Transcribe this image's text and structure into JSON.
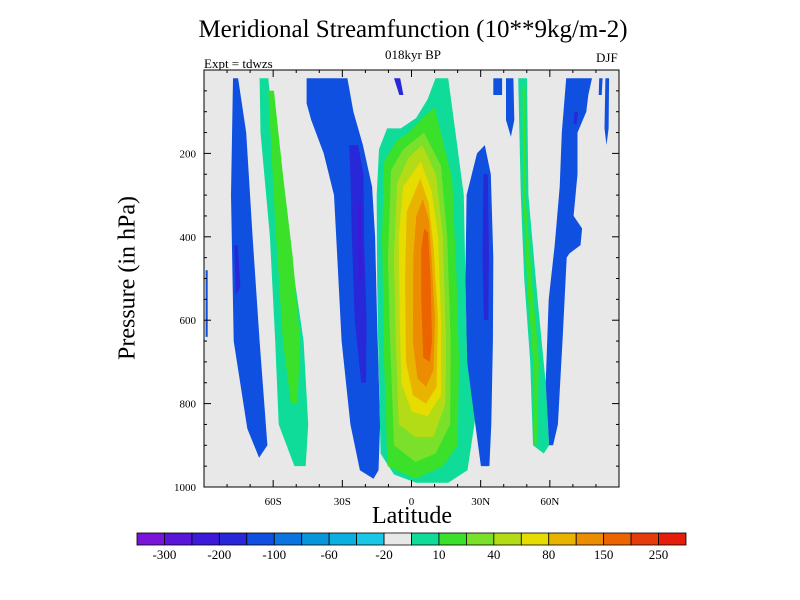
{
  "chart_data": {
    "type": "heatmap",
    "title": "Meridional Streamfunction (10**9kg/m-2)",
    "subtitle": "018kyr BP",
    "left_annotation": "Expt = tdwzs",
    "right_annotation": "DJF",
    "xlabel": "Latitude",
    "ylabel": "Pressure (in hPa)",
    "xlim": [
      -90,
      90
    ],
    "ylim": [
      1000,
      0
    ],
    "x_ticks": [
      {
        "value": -60,
        "label": "60S"
      },
      {
        "value": -30,
        "label": "30S"
      },
      {
        "value": 0,
        "label": "0"
      },
      {
        "value": 30,
        "label": "30N"
      },
      {
        "value": 60,
        "label": "60N"
      }
    ],
    "y_ticks": [
      {
        "value": 200,
        "label": "200"
      },
      {
        "value": 400,
        "label": "400"
      },
      {
        "value": 600,
        "label": "600"
      },
      {
        "value": 800,
        "label": "800"
      },
      {
        "value": 1000,
        "label": "1000"
      }
    ],
    "background_color": "#e8e8e8",
    "colorbar": {
      "colors": [
        "#7a14d8",
        "#5a16d8",
        "#3c1ad8",
        "#2828d8",
        "#1050e0",
        "#0a74e0",
        "#0896da",
        "#0ab0e0",
        "#18c8e6",
        "#e8e8e8",
        "#10dc9a",
        "#3ae02a",
        "#7ae02a",
        "#b4dc16",
        "#e6dc00",
        "#e8b400",
        "#ec8c00",
        "#ec6400",
        "#e43c0a",
        "#e41e0a"
      ],
      "labels": [
        "-300",
        "-200",
        "-100",
        "-60",
        "-20",
        "10",
        "40",
        "80",
        "150",
        "250"
      ]
    },
    "regions": [
      {
        "level": -5,
        "polygon": [
          [
            -77.4,
            20
          ],
          [
            -75.2,
            20
          ],
          [
            -71.7,
            150
          ],
          [
            -68.9,
            400
          ],
          [
            -65.9,
            650
          ],
          [
            -62.5,
            900
          ],
          [
            -66.1,
            930
          ],
          [
            -71.2,
            860
          ],
          [
            -77.1,
            650
          ],
          [
            -78.3,
            300
          ]
        ]
      },
      {
        "level": -6,
        "polygon": [
          [
            -76.9,
            420
          ],
          [
            -75.4,
            420
          ],
          [
            -74.2,
            520
          ],
          [
            -76.2,
            540
          ]
        ]
      },
      {
        "level": -5,
        "polygon": [
          [
            -89.3,
            480
          ],
          [
            -88.4,
            480
          ],
          [
            -88.4,
            640
          ],
          [
            -89.3,
            640
          ]
        ]
      },
      {
        "level": 1,
        "polygon": [
          [
            -65.9,
            20
          ],
          [
            -62.1,
            20
          ],
          [
            -58.9,
            200
          ],
          [
            -53.4,
            400
          ],
          [
            -46.8,
            650
          ],
          [
            -44.8,
            850
          ],
          [
            -45.9,
            950
          ],
          [
            -50.8,
            950
          ],
          [
            -57.6,
            850
          ],
          [
            -59.1,
            650
          ],
          [
            -61.4,
            400
          ],
          [
            -65.5,
            150
          ]
        ]
      },
      {
        "level": 2,
        "polygon": [
          [
            -62.1,
            50
          ],
          [
            -59.7,
            50
          ],
          [
            -55.8,
            250
          ],
          [
            -51.5,
            450
          ],
          [
            -48.3,
            650
          ],
          [
            -49.4,
            800
          ],
          [
            -52.3,
            800
          ],
          [
            -55.8,
            650
          ],
          [
            -59.3,
            350
          ]
        ]
      },
      {
        "level": -5,
        "polygon": [
          [
            -45.5,
            20
          ],
          [
            -27.8,
            20
          ],
          [
            -25.2,
            100
          ],
          [
            -21.1,
            180
          ],
          [
            -17.1,
            280
          ],
          [
            -15.8,
            400
          ],
          [
            -14.9,
            600
          ],
          [
            -13.6,
            850
          ],
          [
            -14.3,
            960
          ],
          [
            -16.5,
            980
          ],
          [
            -22.4,
            960
          ],
          [
            -26.5,
            850
          ],
          [
            -30.3,
            650
          ],
          [
            -32.2,
            450
          ],
          [
            -33.6,
            300
          ],
          [
            -38.1,
            200
          ],
          [
            -43.5,
            120
          ],
          [
            -45.5,
            80
          ]
        ]
      },
      {
        "level": -6,
        "polygon": [
          [
            -27.1,
            180
          ],
          [
            -23.1,
            180
          ],
          [
            -20.8,
            250
          ],
          [
            -20.6,
            400
          ],
          [
            -19.5,
            600
          ],
          [
            -19.7,
            750
          ],
          [
            -21.8,
            750
          ],
          [
            -24.6,
            600
          ],
          [
            -25.9,
            400
          ],
          [
            -26.5,
            250
          ]
        ]
      },
      {
        "level": -7,
        "polygon": [
          [
            -23.3,
            320
          ],
          [
            -21.8,
            320
          ],
          [
            -21.3,
            500
          ],
          [
            -22.9,
            500
          ]
        ]
      },
      {
        "level": -6,
        "polygon": [
          [
            -7.6,
            20
          ],
          [
            -4.9,
            20
          ],
          [
            -3.5,
            60
          ],
          [
            -5.3,
            60
          ]
        ]
      },
      {
        "level": 1,
        "polygon": [
          [
            10.4,
            20
          ],
          [
            15.9,
            20
          ],
          [
            19.1,
            150
          ],
          [
            22.7,
            300
          ],
          [
            23.4,
            500
          ],
          [
            24.1,
            700
          ],
          [
            27.8,
            830
          ],
          [
            24.3,
            960
          ],
          [
            15.9,
            990
          ],
          [
            2,
            990
          ],
          [
            -7.6,
            970
          ],
          [
            -13.4,
            920
          ],
          [
            -14.3,
            700
          ],
          [
            -14.9,
            500
          ],
          [
            -15.1,
            300
          ],
          [
            -14.1,
            190
          ],
          [
            -10.6,
            140
          ],
          [
            -4.7,
            140
          ],
          [
            2,
            115
          ],
          [
            7,
            70
          ]
        ]
      },
      {
        "level": 2,
        "polygon": [
          [
            10,
            90
          ],
          [
            17.6,
            260
          ],
          [
            19.5,
            500
          ],
          [
            20.6,
            700
          ],
          [
            20,
            900
          ],
          [
            13.7,
            950
          ],
          [
            1.7,
            980
          ],
          [
            -10.4,
            950
          ],
          [
            -11.9,
            700
          ],
          [
            -12.8,
            400
          ],
          [
            -11.9,
            220
          ],
          [
            -6.6,
            170
          ],
          [
            -1.3,
            150
          ],
          [
            5.7,
            110
          ]
        ]
      },
      {
        "level": 3,
        "polygon": [
          [
            5.4,
            150
          ],
          [
            12.8,
            230
          ],
          [
            15.5,
            400
          ],
          [
            17,
            650
          ],
          [
            16.8,
            850
          ],
          [
            10.4,
            920
          ],
          [
            1.7,
            940
          ],
          [
            -7.6,
            900
          ],
          [
            -9.3,
            650
          ],
          [
            -10.2,
            450
          ],
          [
            -8.9,
            240
          ],
          [
            -3.6,
            190
          ]
        ]
      },
      {
        "level": 4,
        "polygon": [
          [
            4.7,
            180
          ],
          [
            10.6,
            250
          ],
          [
            13.6,
            400
          ],
          [
            14.9,
            650
          ],
          [
            14.7,
            800
          ],
          [
            9.5,
            880
          ],
          [
            1.7,
            880
          ],
          [
            -5.5,
            850
          ],
          [
            -6.8,
            650
          ],
          [
            -7.6,
            450
          ],
          [
            -6.2,
            270
          ],
          [
            -1.3,
            210
          ]
        ]
      },
      {
        "level": 5,
        "polygon": [
          [
            4,
            220
          ],
          [
            8.7,
            290
          ],
          [
            11.5,
            400
          ],
          [
            12.8,
            600
          ],
          [
            12.8,
            780
          ],
          [
            7,
            830
          ],
          [
            0.2,
            820
          ],
          [
            -4.4,
            750
          ],
          [
            -5.1,
            600
          ],
          [
            -5.5,
            400
          ],
          [
            -3.6,
            280
          ]
        ]
      },
      {
        "level": 6,
        "polygon": [
          [
            3.8,
            260
          ],
          [
            7.4,
            320
          ],
          [
            9.5,
            420
          ],
          [
            11.5,
            600
          ],
          [
            10.9,
            760
          ],
          [
            6.3,
            800
          ],
          [
            0.6,
            780
          ],
          [
            -2.4,
            700
          ],
          [
            -2.8,
            500
          ],
          [
            -2.1,
            340
          ]
        ]
      },
      {
        "level": 7,
        "polygon": [
          [
            4.9,
            310
          ],
          [
            7.6,
            360
          ],
          [
            8.7,
            450
          ],
          [
            10.2,
            600
          ],
          [
            9.5,
            720
          ],
          [
            6.3,
            760
          ],
          [
            2.6,
            740
          ],
          [
            0.6,
            650
          ],
          [
            0.8,
            450
          ],
          [
            2.1,
            350
          ]
        ]
      },
      {
        "level": 8,
        "polygon": [
          [
            5.5,
            380
          ],
          [
            7.2,
            390
          ],
          [
            8.3,
            500
          ],
          [
            8.9,
            650
          ],
          [
            7.9,
            700
          ],
          [
            5.1,
            690
          ],
          [
            4.2,
            550
          ],
          [
            4.2,
            430
          ]
        ]
      },
      {
        "level": -5,
        "polygon": [
          [
            28.4,
            200
          ],
          [
            31.8,
            180
          ],
          [
            34.4,
            250
          ],
          [
            35.5,
            450
          ],
          [
            35.3,
            650
          ],
          [
            34.6,
            850
          ],
          [
            33.8,
            950
          ],
          [
            30.1,
            950
          ],
          [
            27.2,
            830
          ],
          [
            24.1,
            700
          ],
          [
            23.4,
            500
          ],
          [
            23.9,
            300
          ]
        ]
      },
      {
        "level": -6,
        "polygon": [
          [
            31.2,
            250
          ],
          [
            33.1,
            250
          ],
          [
            33.6,
            450
          ],
          [
            33.3,
            600
          ],
          [
            31.4,
            600
          ],
          [
            30.8,
            450
          ]
        ]
      },
      {
        "level": -5,
        "polygon": [
          [
            35.5,
            20
          ],
          [
            39.3,
            20
          ],
          [
            39.3,
            60
          ],
          [
            35.5,
            60
          ]
        ]
      },
      {
        "level": -5,
        "polygon": [
          [
            41,
            20
          ],
          [
            44.2,
            20
          ],
          [
            44.6,
            120
          ],
          [
            43.1,
            160
          ],
          [
            41,
            120
          ]
        ]
      },
      {
        "level": 1,
        "polygon": [
          [
            46.3,
            20
          ],
          [
            50.1,
            20
          ],
          [
            50.7,
            300
          ],
          [
            54.7,
            550
          ],
          [
            58.2,
            750
          ],
          [
            59.7,
            900
          ],
          [
            57.4,
            920
          ],
          [
            52.7,
            900
          ],
          [
            51.5,
            700
          ],
          [
            48.9,
            500
          ],
          [
            47.4,
            300
          ]
        ]
      },
      {
        "level": 2,
        "polygon": [
          [
            48.2,
            40
          ],
          [
            49.1,
            40
          ],
          [
            49.4,
            300
          ],
          [
            52.6,
            530
          ],
          [
            55.3,
            700
          ],
          [
            54.2,
            900
          ],
          [
            53.2,
            900
          ],
          [
            52.8,
            700
          ],
          [
            50.2,
            520
          ],
          [
            48.5,
            300
          ]
        ]
      },
      {
        "level": -5,
        "polygon": [
          [
            67.1,
            20
          ],
          [
            78.3,
            20
          ],
          [
            76.7,
            60
          ],
          [
            75.8,
            100
          ],
          [
            72,
            150
          ],
          [
            72,
            250
          ],
          [
            70.3,
            350
          ],
          [
            74,
            380
          ],
          [
            73.3,
            420
          ],
          [
            68.5,
            440
          ],
          [
            67.3,
            450
          ],
          [
            65.5,
            650
          ],
          [
            63.5,
            850
          ],
          [
            61.4,
            900
          ],
          [
            59.7,
            900
          ],
          [
            58.2,
            750
          ],
          [
            59.5,
            550
          ],
          [
            62.1,
            420
          ],
          [
            64.3,
            280
          ],
          [
            65.2,
            150
          ]
        ]
      },
      {
        "level": -6,
        "polygon": [
          [
            70.7,
            100
          ],
          [
            72.2,
            100
          ],
          [
            71.6,
            130
          ],
          [
            70.3,
            130
          ]
        ]
      },
      {
        "level": -5,
        "polygon": [
          [
            81.4,
            20
          ],
          [
            82.9,
            20
          ],
          [
            82.5,
            60
          ],
          [
            81.2,
            60
          ]
        ]
      },
      {
        "level": -5,
        "polygon": [
          [
            84.1,
            20
          ],
          [
            85.7,
            20
          ],
          [
            85.5,
            140
          ],
          [
            84.6,
            180
          ],
          [
            83.7,
            140
          ]
        ]
      }
    ]
  }
}
